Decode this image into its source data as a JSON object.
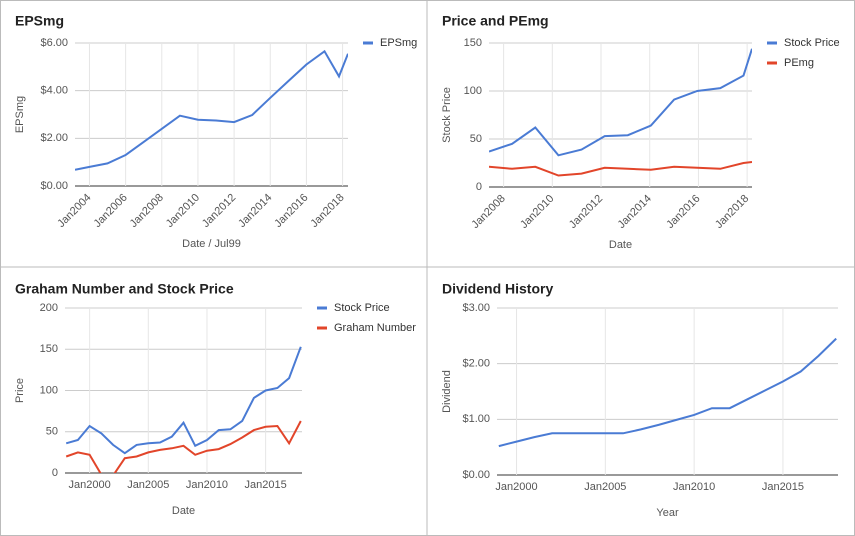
{
  "chart_data": [
    {
      "type": "line",
      "title": "EPSmg",
      "x_label": "Date / Jul99",
      "y_label": "EPSmg",
      "legend": "right",
      "grid": true,
      "x": [
        2003.2,
        2004,
        2005,
        2006,
        2007,
        2008,
        2009,
        2010,
        2011,
        2012,
        2013,
        2014,
        2015,
        2016,
        2017,
        2017.8,
        2018.3
      ],
      "series": [
        {
          "name": "EPSmg",
          "color": "#4a7bd4",
          "values": [
            0.68,
            0.8,
            0.95,
            1.3,
            1.85,
            2.4,
            2.95,
            2.78,
            2.75,
            2.68,
            2.98,
            3.7,
            4.4,
            5.1,
            5.65,
            4.6,
            5.55
          ]
        }
      ],
      "xlim": [
        2003.2,
        2018.3
      ],
      "xticks": [
        {
          "value": 2004,
          "label": "Jan2004"
        },
        {
          "value": 2006,
          "label": "Jan2006"
        },
        {
          "value": 2008,
          "label": "Jan2008"
        },
        {
          "value": 2010,
          "label": "Jan2010"
        },
        {
          "value": 2012,
          "label": "Jan2012"
        },
        {
          "value": 2014,
          "label": "Jan2014"
        },
        {
          "value": 2016,
          "label": "Jan2016"
        },
        {
          "value": 2018,
          "label": "Jan2018"
        }
      ],
      "ylim": [
        0,
        6
      ],
      "yticks": [
        {
          "value": 0,
          "label": "$0.00"
        },
        {
          "value": 2,
          "label": "$2.00"
        },
        {
          "value": 4,
          "label": "$4.00"
        },
        {
          "value": 6,
          "label": "$6.00"
        }
      ]
    },
    {
      "type": "line",
      "title": "Price and PEmg",
      "x_label": "Date",
      "y_label": "Stock Price",
      "legend": "right",
      "grid": true,
      "x": [
        2007.4,
        2008.35,
        2009.3,
        2010.25,
        2011.2,
        2012.15,
        2013.1,
        2014.05,
        2015.0,
        2015.95,
        2016.9,
        2017.85,
        2018.2
      ],
      "series": [
        {
          "name": "Stock Price",
          "color": "#4a7bd4",
          "values": [
            37,
            45,
            62,
            33,
            39,
            53,
            54,
            64,
            91,
            100,
            103,
            116,
            144
          ]
        },
        {
          "name": "PEmg",
          "color": "#e2452a",
          "values": [
            21,
            19,
            21,
            12,
            14,
            20,
            19,
            18,
            21,
            20,
            19,
            25,
            26
          ]
        }
      ],
      "xlim": [
        2007.4,
        2018.2
      ],
      "xticks": [
        {
          "value": 2008,
          "label": "Jan2008"
        },
        {
          "value": 2010,
          "label": "Jan2010"
        },
        {
          "value": 2012,
          "label": "Jan2012"
        },
        {
          "value": 2014,
          "label": "Jan2014"
        },
        {
          "value": 2016,
          "label": "Jan2016"
        },
        {
          "value": 2018,
          "label": "Jan2018"
        }
      ],
      "ylim": [
        0,
        150
      ],
      "yticks": [
        0,
        50,
        100,
        150
      ]
    },
    {
      "type": "line",
      "title": "Graham Number and Stock Price",
      "x_label": "Date",
      "y_label": "Price",
      "legend": "right",
      "grid": true,
      "x": [
        1998,
        1999,
        2000,
        2001,
        2002,
        2003,
        2004,
        2005,
        2006,
        2007,
        2008,
        2009,
        2010,
        2011,
        2012,
        2013,
        2014,
        2015,
        2016,
        2017,
        2018
      ],
      "series": [
        {
          "name": "Stock Price",
          "color": "#4a7bd4",
          "values": [
            36,
            40,
            57,
            48,
            34,
            24,
            34,
            36,
            37,
            44,
            61,
            33,
            40,
            52,
            53,
            63,
            91,
            100,
            103,
            115,
            153
          ]
        },
        {
          "name": "Graham Number",
          "color": "#e2452a",
          "values": [
            20,
            25,
            22,
            -2,
            -3,
            18,
            20,
            25,
            28,
            30,
            33,
            22,
            27,
            29,
            35,
            43,
            52,
            56,
            57,
            36,
            63
          ]
        }
      ],
      "xlim": [
        1997.9,
        2018.1
      ],
      "xticks": [
        {
          "value": 2000,
          "label": "Jan2000"
        },
        {
          "value": 2005,
          "label": "Jan2005"
        },
        {
          "value": 2010,
          "label": "Jan2010"
        },
        {
          "value": 2015,
          "label": "Jan2015"
        }
      ],
      "ylim": [
        0,
        200
      ],
      "yticks": [
        0,
        50,
        100,
        150,
        200
      ]
    },
    {
      "type": "line",
      "title": "Dividend History",
      "x_label": "Year",
      "y_label": "Dividend",
      "grid": true,
      "x": [
        1999,
        2000,
        2001,
        2002,
        2003,
        2004,
        2005,
        2006,
        2007,
        2008,
        2009,
        2010,
        2011,
        2012,
        2013,
        2014,
        2015,
        2016,
        2017,
        2018
      ],
      "series": [
        {
          "color": "#4a7bd4",
          "values": [
            0.52,
            0.6,
            0.68,
            0.75,
            0.75,
            0.75,
            0.75,
            0.75,
            0.82,
            0.9,
            0.99,
            1.08,
            1.2,
            1.2,
            1.36,
            1.52,
            1.68,
            1.86,
            2.14,
            2.45
          ]
        }
      ],
      "xlim": [
        1998.9,
        2018.1
      ],
      "xticks": [
        {
          "value": 2000,
          "label": "Jan2000"
        },
        {
          "value": 2005,
          "label": "Jan2005"
        },
        {
          "value": 2010,
          "label": "Jan2010"
        },
        {
          "value": 2015,
          "label": "Jan2015"
        }
      ],
      "ylim": [
        0,
        3
      ],
      "yticks": [
        {
          "value": 0,
          "label": "$0.00"
        },
        {
          "value": 1,
          "label": "$1.00"
        },
        {
          "value": 2,
          "label": "$2.00"
        },
        {
          "value": 3,
          "label": "$3.00"
        }
      ]
    }
  ]
}
